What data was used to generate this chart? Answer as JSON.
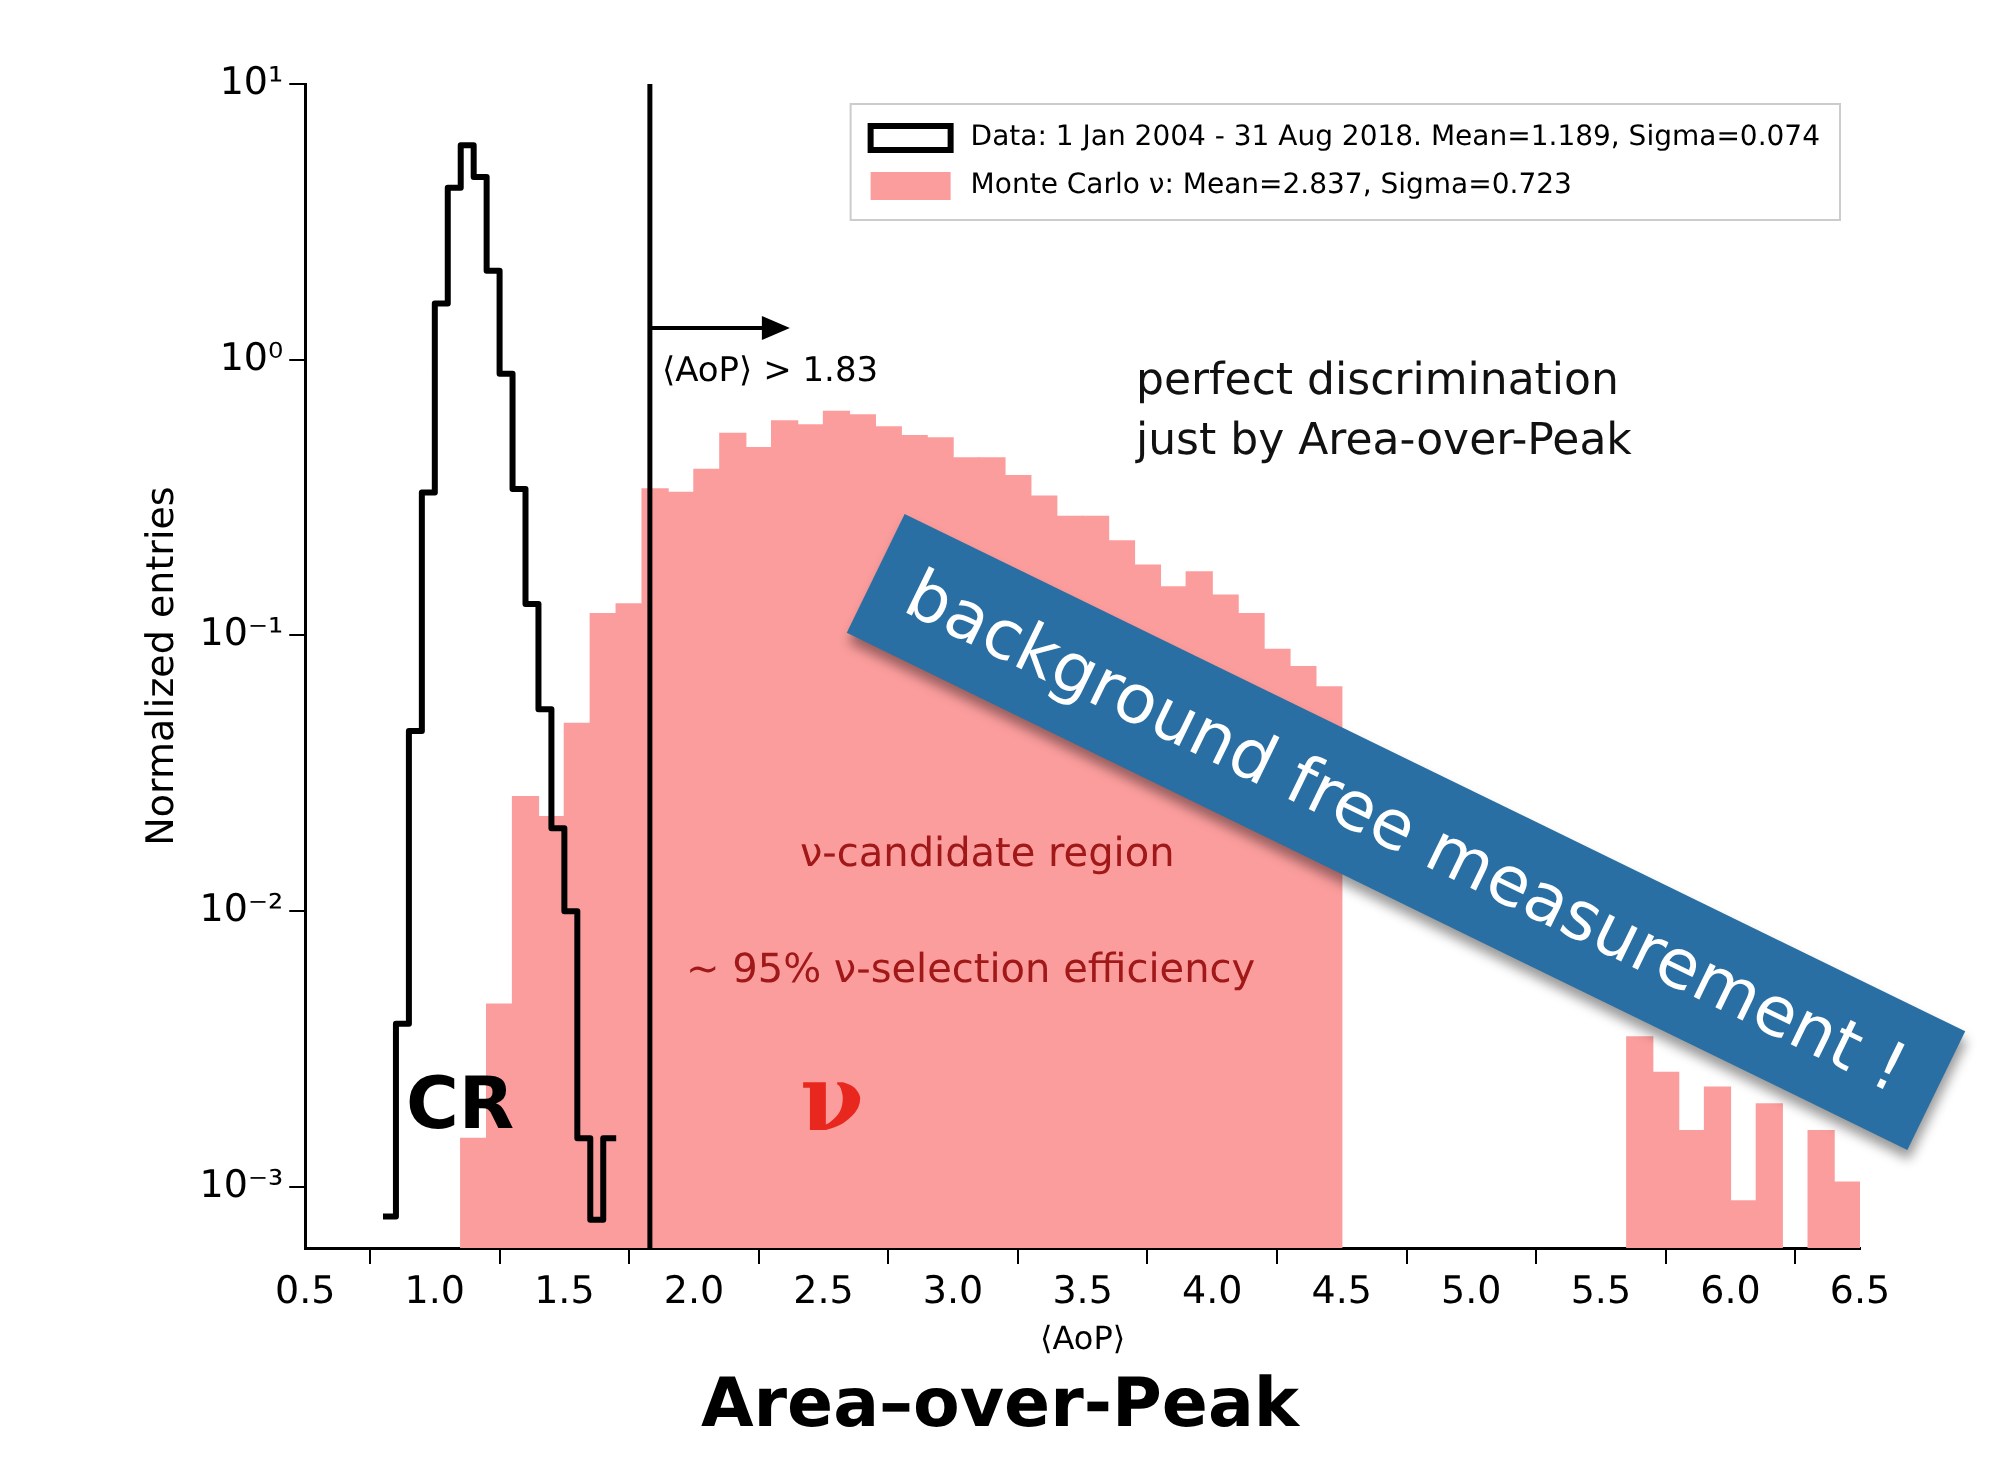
{
  "chart_data": {
    "type": "histogram",
    "xlabel": "⟨AoP⟩",
    "ylabel": "Normalized entries",
    "bins": [
      1.1,
      1.2,
      1.3,
      1.4,
      1.5,
      1.6,
      1.7,
      1.8,
      1.9,
      2.0,
      2.1,
      2.2,
      2.3,
      2.4,
      2.5,
      2.6,
      2.7,
      2.8,
      2.9,
      3.0,
      3.1,
      3.2,
      3.3,
      3.4,
      3.5,
      3.6,
      3.7,
      3.8,
      3.9,
      4.0,
      4.1,
      4.2,
      4.3,
      4.4,
      4.5,
      4.6,
      4.7,
      4.8,
      4.9,
      5.0,
      5.1,
      5.2,
      5.3,
      5.4,
      5.5,
      5.6,
      5.7,
      5.8,
      5.9,
      6.0,
      6.1,
      6.2,
      6.3,
      6.4,
      6.5
    ],
    "series": [
      {
        "name": "Data: 1 Jan 2004 - 31 Aug 2018. Mean=1.189, Sigma=0.074",
        "type": "step",
        "color": "#000000",
        "x": [
          0.8,
          0.85,
          0.9,
          0.95,
          1.0,
          1.05,
          1.1,
          1.15,
          1.2,
          1.25,
          1.3,
          1.35,
          1.4,
          1.45,
          1.5,
          1.55,
          1.6,
          1.65,
          1.7
        ],
        "values": [
          0.00078,
          0.00078,
          0.0039,
          0.045,
          0.33,
          1.6,
          4.2,
          6.0,
          4.6,
          2.1,
          0.89,
          0.34,
          0.13,
          0.054,
          0.02,
          0.01,
          0.0015,
          0.00076,
          0.0015
        ]
      },
      {
        "name": "Monte Carlo ν: Mean=2.837, Sigma=0.723",
        "color": "#fc9d9d",
        "values": [
          0.0015,
          0.0046,
          0.026,
          0.022,
          0.048,
          0.12,
          0.13,
          0.34,
          0.33,
          0.4,
          0.54,
          0.48,
          0.6,
          0.58,
          0.65,
          0.63,
          0.57,
          0.53,
          0.52,
          0.44,
          0.44,
          0.38,
          0.32,
          0.27,
          0.27,
          0.22,
          0.18,
          0.15,
          0.17,
          0.14,
          0.12,
          0.089,
          0.077,
          0.065,
          null,
          null,
          null,
          null,
          null,
          null,
          null,
          null,
          null,
          null,
          null,
          0.0035,
          0.0026,
          0.0016,
          0.0023,
          0.00089,
          0.002,
          null,
          0.0016,
          0.00104
        ]
      }
    ],
    "xlim": [
      0.5,
      6.5
    ],
    "xticks": [
      0.5,
      {
        "value": 1,
        "label": "1.0"
      },
      1.5,
      {
        "value": 2,
        "label": "2.0"
      },
      2.5,
      {
        "value": 3,
        "label": "3.0"
      },
      3.5,
      {
        "value": 4,
        "label": "4.0"
      },
      4.5,
      {
        "value": 5,
        "label": "5.0"
      },
      5.5,
      {
        "value": 6,
        "label": "6.0"
      },
      6.5
    ],
    "ylim": [
      0.0006,
      10
    ],
    "yticks": [
      {
        "value": 0.001,
        "label": "10⁻³"
      },
      {
        "value": 0.01,
        "label": "10⁻²"
      },
      {
        "value": 0.1,
        "label": "10⁻¹"
      },
      {
        "value": 1,
        "label": "10⁰"
      },
      {
        "value": 10,
        "label": "10¹"
      }
    ],
    "log": "y",
    "legend": "top right",
    "ref_lines": [
      {
        "axis": "x",
        "value": 1.83,
        "label": "⟨AoP⟩ > 1.83",
        "color": "#000000"
      }
    ],
    "annotations": [
      "perfect discrimination\njust by Area-over-Peak",
      "ν-candidate region",
      "~ 95% ν-selection efficiency",
      "CR",
      "ν",
      "background free measurement !",
      "Area–over-Peak"
    ]
  }
}
